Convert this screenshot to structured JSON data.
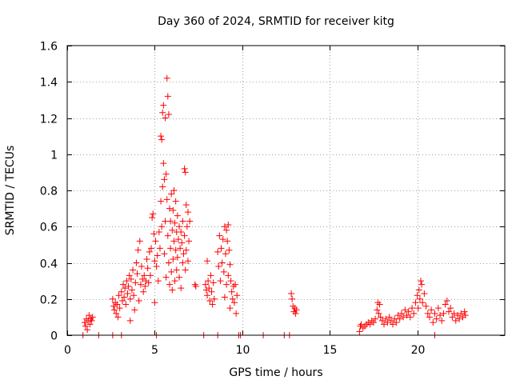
{
  "chart_data": {
    "type": "scatter",
    "title": "Day 360 of 2024, SRMTID for receiver kitg",
    "xlabel": "GPS time / hours",
    "ylabel": "SRMTID / TECUs",
    "xlim": [
      0,
      25
    ],
    "ylim": [
      0,
      1.6
    ],
    "xticks": [
      0,
      5,
      10,
      15,
      20
    ],
    "yticks": [
      0,
      0.2,
      0.4,
      0.6,
      0.8,
      1,
      1.2,
      1.4,
      1.6
    ],
    "ytick_labels": [
      "0",
      "0.2",
      "0.4",
      "0.6",
      "0.8",
      "1",
      "1.2",
      "1.4",
      "1.6"
    ],
    "grid": true,
    "marker": "+",
    "color": "#ff0000",
    "series": [
      {
        "name": "SRMTID",
        "points": [
          [
            0.9,
            0.0
          ],
          [
            1.0,
            0.07
          ],
          [
            1.05,
            0.05
          ],
          [
            1.1,
            0.09
          ],
          [
            1.15,
            0.03
          ],
          [
            1.2,
            0.08
          ],
          [
            1.25,
            0.11
          ],
          [
            1.3,
            0.06
          ],
          [
            1.35,
            0.09
          ],
          [
            1.4,
            0.08
          ],
          [
            1.45,
            0.1
          ],
          [
            1.8,
            0.0
          ],
          [
            2.6,
            0.0
          ],
          [
            2.6,
            0.2
          ],
          [
            2.65,
            0.16
          ],
          [
            2.7,
            0.14
          ],
          [
            2.75,
            0.18
          ],
          [
            2.8,
            0.12
          ],
          [
            2.85,
            0.17
          ],
          [
            2.9,
            0.1
          ],
          [
            2.95,
            0.22
          ],
          [
            3.0,
            0.15
          ],
          [
            3.1,
            0.0
          ],
          [
            3.1,
            0.24
          ],
          [
            3.15,
            0.19
          ],
          [
            3.2,
            0.28
          ],
          [
            3.25,
            0.21
          ],
          [
            3.3,
            0.26
          ],
          [
            3.35,
            0.17
          ],
          [
            3.4,
            0.3
          ],
          [
            3.45,
            0.23
          ],
          [
            3.5,
            0.27
          ],
          [
            3.55,
            0.33
          ],
          [
            3.6,
            0.08
          ],
          [
            3.6,
            0.2
          ],
          [
            3.65,
            0.31
          ],
          [
            3.7,
            0.25
          ],
          [
            3.75,
            0.36
          ],
          [
            3.8,
            0.22
          ],
          [
            3.85,
            0.14
          ],
          [
            3.9,
            0.29
          ],
          [
            3.95,
            0.4
          ],
          [
            4.0,
            0.34
          ],
          [
            4.05,
            0.47
          ],
          [
            4.1,
            0.19
          ],
          [
            4.15,
            0.52
          ],
          [
            4.2,
            0.28
          ],
          [
            4.25,
            0.38
          ],
          [
            4.3,
            0.31
          ],
          [
            4.35,
            0.24
          ],
          [
            4.4,
            0.33
          ],
          [
            4.45,
            0.27
          ],
          [
            4.5,
            0.3
          ],
          [
            4.55,
            0.42
          ],
          [
            4.6,
            0.37
          ],
          [
            4.65,
            0.29
          ],
          [
            4.7,
            0.46
          ],
          [
            4.75,
            0.33
          ],
          [
            4.8,
            0.48
          ],
          [
            4.85,
            0.65
          ],
          [
            4.9,
            0.67
          ],
          [
            4.95,
            0.56
          ],
          [
            5.0,
            0.41
          ],
          [
            5.0,
            0.18
          ],
          [
            5.05,
            0.52
          ],
          [
            5.1,
            0.38
          ],
          [
            5.1,
            0.0
          ],
          [
            5.15,
            0.44
          ],
          [
            5.2,
            0.3
          ],
          [
            5.25,
            0.57
          ],
          [
            5.3,
            0.48
          ],
          [
            5.35,
            0.74
          ],
          [
            5.35,
            1.1
          ],
          [
            5.4,
            1.08
          ],
          [
            5.4,
            0.6
          ],
          [
            5.45,
            1.23
          ],
          [
            5.45,
            0.82
          ],
          [
            5.5,
            1.27
          ],
          [
            5.5,
            0.95
          ],
          [
            5.55,
            0.86
          ],
          [
            5.55,
            0.45
          ],
          [
            5.6,
            1.2
          ],
          [
            5.6,
            0.63
          ],
          [
            5.65,
            0.89
          ],
          [
            5.65,
            0.32
          ],
          [
            5.7,
            1.42
          ],
          [
            5.7,
            0.75
          ],
          [
            5.75,
            1.32
          ],
          [
            5.75,
            0.55
          ],
          [
            5.8,
            1.22
          ],
          [
            5.8,
            0.4
          ],
          [
            5.85,
            0.7
          ],
          [
            5.85,
            0.28
          ],
          [
            5.9,
            0.63
          ],
          [
            5.9,
            0.48
          ],
          [
            5.95,
            0.78
          ],
          [
            5.95,
            0.35
          ],
          [
            6.0,
            0.58
          ],
          [
            6.0,
            0.25
          ],
          [
            6.05,
            0.69
          ],
          [
            6.05,
            0.42
          ],
          [
            6.1,
            0.8
          ],
          [
            6.1,
            0.52
          ],
          [
            6.15,
            0.62
          ],
          [
            6.15,
            0.3
          ],
          [
            6.2,
            0.74
          ],
          [
            6.2,
            0.47
          ],
          [
            6.25,
            0.57
          ],
          [
            6.25,
            0.36
          ],
          [
            6.3,
            0.66
          ],
          [
            6.3,
            0.43
          ],
          [
            6.35,
            0.53
          ],
          [
            6.4,
            0.6
          ],
          [
            6.4,
            0.32
          ],
          [
            6.45,
            0.48
          ],
          [
            6.5,
            0.57
          ],
          [
            6.5,
            0.26
          ],
          [
            6.55,
            0.51
          ],
          [
            6.6,
            0.63
          ],
          [
            6.6,
            0.4
          ],
          [
            6.65,
            0.45
          ],
          [
            6.7,
            0.92
          ],
          [
            6.7,
            0.55
          ],
          [
            6.75,
            0.9
          ],
          [
            6.75,
            0.36
          ],
          [
            6.8,
            0.72
          ],
          [
            6.8,
            0.47
          ],
          [
            6.85,
            0.6
          ],
          [
            6.9,
            0.68
          ],
          [
            6.9,
            0.41
          ],
          [
            6.95,
            0.52
          ],
          [
            7.0,
            0.63
          ],
          [
            7.3,
            0.28
          ],
          [
            7.35,
            0.27
          ],
          [
            7.8,
            0.0
          ],
          [
            7.9,
            0.28
          ],
          [
            7.95,
            0.25
          ],
          [
            8.0,
            0.41
          ],
          [
            8.0,
            0.22
          ],
          [
            8.05,
            0.3
          ],
          [
            8.1,
            0.26
          ],
          [
            8.15,
            0.19
          ],
          [
            8.2,
            0.33
          ],
          [
            8.25,
            0.24
          ],
          [
            8.3,
            0.17
          ],
          [
            8.35,
            0.29
          ],
          [
            8.4,
            0.2
          ],
          [
            8.6,
            0.0
          ],
          [
            8.6,
            0.46
          ],
          [
            8.65,
            0.38
          ],
          [
            8.7,
            0.55
          ],
          [
            8.75,
            0.3
          ],
          [
            8.8,
            0.48
          ],
          [
            8.85,
            0.4
          ],
          [
            8.9,
            0.53
          ],
          [
            8.95,
            0.35
          ],
          [
            9.0,
            0.6
          ],
          [
            9.0,
            0.21
          ],
          [
            9.05,
            0.45
          ],
          [
            9.1,
            0.58
          ],
          [
            9.1,
            0.28
          ],
          [
            9.15,
            0.52
          ],
          [
            9.2,
            0.61
          ],
          [
            9.2,
            0.33
          ],
          [
            9.25,
            0.47
          ],
          [
            9.3,
            0.39
          ],
          [
            9.3,
            0.15
          ],
          [
            9.35,
            0.3
          ],
          [
            9.4,
            0.24
          ],
          [
            9.45,
            0.2
          ],
          [
            9.5,
            0.27
          ],
          [
            9.55,
            0.18
          ],
          [
            9.6,
            0.28
          ],
          [
            9.65,
            0.12
          ],
          [
            9.7,
            0.22
          ],
          [
            9.8,
            0.0
          ],
          [
            9.9,
            0.0
          ],
          [
            11.2,
            0.0
          ],
          [
            12.4,
            0.0
          ],
          [
            12.7,
            0.0
          ],
          [
            12.8,
            0.23
          ],
          [
            12.85,
            0.2
          ],
          [
            12.9,
            0.16
          ],
          [
            12.95,
            0.13
          ],
          [
            13.0,
            0.15
          ],
          [
            13.05,
            0.12
          ],
          [
            13.1,
            0.14
          ],
          [
            16.7,
            0.02
          ],
          [
            16.75,
            0.05
          ],
          [
            16.8,
            0.06
          ],
          [
            16.9,
            0.04
          ],
          [
            17.0,
            0.05
          ],
          [
            17.1,
            0.06
          ],
          [
            17.2,
            0.07
          ],
          [
            17.3,
            0.06
          ],
          [
            17.4,
            0.08
          ],
          [
            17.5,
            0.07
          ],
          [
            17.6,
            0.09
          ],
          [
            17.7,
            0.14
          ],
          [
            17.75,
            0.18
          ],
          [
            17.8,
            0.12
          ],
          [
            17.85,
            0.17
          ],
          [
            17.9,
            0.1
          ],
          [
            18.0,
            0.08
          ],
          [
            18.1,
            0.06
          ],
          [
            18.2,
            0.09
          ],
          [
            18.3,
            0.07
          ],
          [
            18.4,
            0.1
          ],
          [
            18.5,
            0.08
          ],
          [
            18.6,
            0.06
          ],
          [
            18.7,
            0.09
          ],
          [
            18.8,
            0.07
          ],
          [
            18.9,
            0.11
          ],
          [
            19.0,
            0.09
          ],
          [
            19.1,
            0.12
          ],
          [
            19.2,
            0.1
          ],
          [
            19.3,
            0.14
          ],
          [
            19.4,
            0.11
          ],
          [
            19.5,
            0.13
          ],
          [
            19.6,
            0.1
          ],
          [
            19.7,
            0.15
          ],
          [
            19.8,
            0.12
          ],
          [
            19.9,
            0.18
          ],
          [
            20.0,
            0.22
          ],
          [
            20.05,
            0.15
          ],
          [
            20.1,
            0.25
          ],
          [
            20.15,
            0.2
          ],
          [
            20.2,
            0.3
          ],
          [
            20.25,
            0.28
          ],
          [
            20.3,
            0.18
          ],
          [
            20.4,
            0.23
          ],
          [
            20.5,
            0.16
          ],
          [
            20.6,
            0.12
          ],
          [
            20.7,
            0.1
          ],
          [
            20.8,
            0.14
          ],
          [
            20.9,
            0.07
          ],
          [
            21.0,
            0.0
          ],
          [
            21.0,
            0.12
          ],
          [
            21.1,
            0.09
          ],
          [
            21.2,
            0.15
          ],
          [
            21.3,
            0.11
          ],
          [
            21.4,
            0.08
          ],
          [
            21.5,
            0.12
          ],
          [
            21.6,
            0.17
          ],
          [
            21.7,
            0.19
          ],
          [
            21.8,
            0.13
          ],
          [
            21.9,
            0.15
          ],
          [
            22.0,
            0.1
          ],
          [
            22.1,
            0.12
          ],
          [
            22.2,
            0.08
          ],
          [
            22.3,
            0.11
          ],
          [
            22.4,
            0.09
          ],
          [
            22.5,
            0.12
          ],
          [
            22.6,
            0.1
          ],
          [
            22.7,
            0.13
          ],
          [
            22.75,
            0.11
          ]
        ]
      }
    ]
  }
}
